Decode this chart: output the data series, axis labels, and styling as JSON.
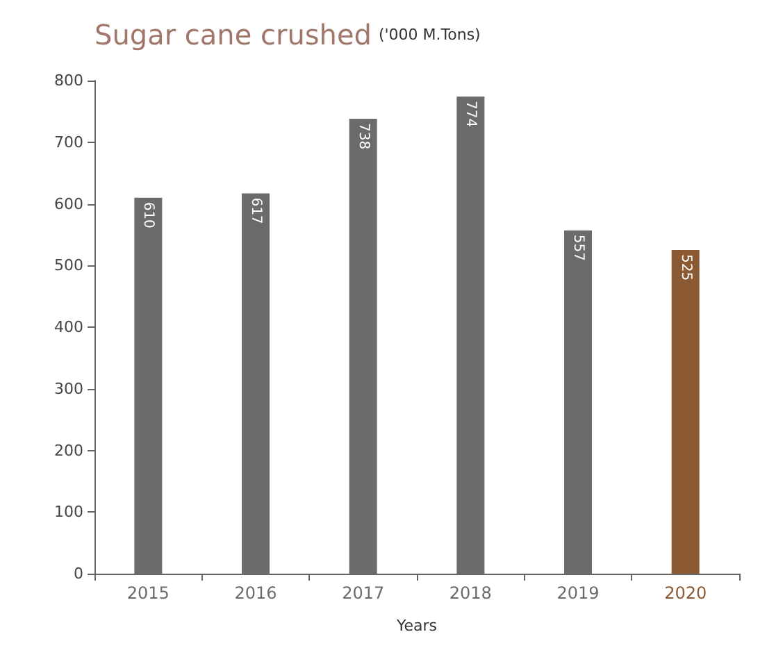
{
  "chart_data": {
    "type": "bar",
    "title": "Sugar cane crushed",
    "subtitle": "('000 M.Tons)",
    "xlabel": "Years",
    "categories": [
      "2015",
      "2016",
      "2017",
      "2018",
      "2019",
      "2020"
    ],
    "values": [
      610,
      617,
      738,
      774,
      557,
      525
    ],
    "colors": [
      "#6b6b6b",
      "#6b6b6b",
      "#6b6b6b",
      "#6b6b6b",
      "#6b6b6b",
      "#8b5a33"
    ],
    "ylim": [
      0,
      800
    ],
    "yticks": [
      0,
      100,
      200,
      300,
      400,
      500,
      600,
      700,
      800
    ],
    "grid": false,
    "data_labels": true
  }
}
